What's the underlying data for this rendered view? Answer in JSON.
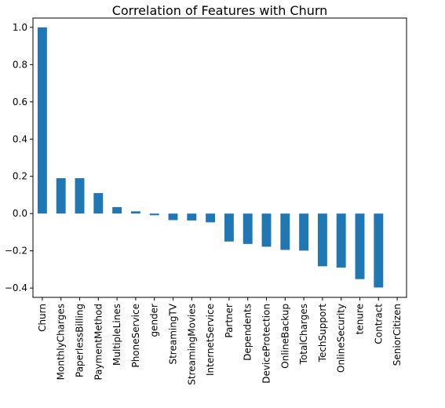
{
  "chart_data": {
    "type": "bar",
    "title": "Correlation of Features with Churn",
    "xlabel": "",
    "ylabel": "",
    "categories": [
      "Churn",
      "MonthlyCharges",
      "PaperlessBilling",
      "PaymentMethod",
      "MultipleLines",
      "PhoneService",
      "gender",
      "StreamingTV",
      "StreamingMovies",
      "InternetService",
      "Partner",
      "Dependents",
      "DeviceProtection",
      "OnlineBackup",
      "TotalCharges",
      "TechSupport",
      "OnlineSecurity",
      "tenure",
      "Contract",
      "SeniorCitizen"
    ],
    "values": [
      1.0,
      0.19,
      0.19,
      0.11,
      0.035,
      0.012,
      -0.009,
      -0.035,
      -0.037,
      -0.047,
      -0.15,
      -0.163,
      -0.178,
      -0.195,
      -0.199,
      -0.283,
      -0.29,
      -0.352,
      -0.397,
      0.0
    ],
    "ylim": [
      -0.45,
      1.05
    ],
    "yticks": [
      -0.4,
      -0.2,
      0.0,
      0.2,
      0.4,
      0.6,
      0.8,
      1.0
    ],
    "ytick_labels": [
      "−0.4",
      "−0.2",
      "0.0",
      "0.2",
      "0.4",
      "0.6",
      "0.8",
      "1.0"
    ],
    "bar_color": "#1f77b4",
    "grid": false,
    "legend": "none"
  }
}
